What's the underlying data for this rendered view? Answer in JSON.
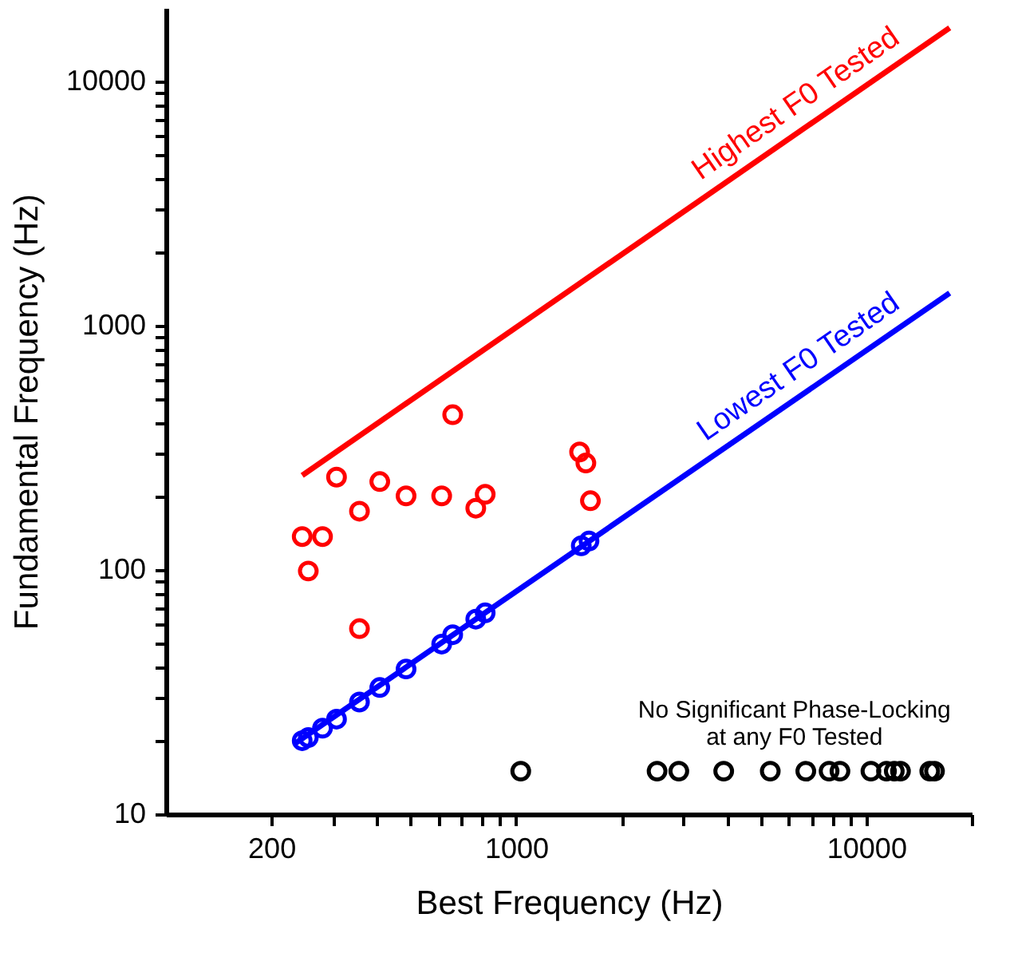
{
  "chart_data": {
    "type": "scatter",
    "xlabel": "Best Frequency (Hz)",
    "ylabel": "Fundamental Frequency (Hz)",
    "log": "xy",
    "grid": false,
    "marker": "circle",
    "xlim": [
      100,
      20000
    ],
    "ylim": [
      10,
      20000
    ],
    "xticks": [
      200,
      {
        "value": 300,
        "label": null
      },
      {
        "value": 400,
        "label": null
      },
      {
        "value": 500,
        "label": null
      },
      {
        "value": 600,
        "label": null
      },
      {
        "value": 700,
        "label": null
      },
      {
        "value": 800,
        "label": null
      },
      {
        "value": 900,
        "label": null
      },
      1000,
      {
        "value": 2000,
        "label": null
      },
      {
        "value": 3000,
        "label": null
      },
      {
        "value": 4000,
        "label": null
      },
      {
        "value": 5000,
        "label": null
      },
      {
        "value": 6000,
        "label": null
      },
      {
        "value": 7000,
        "label": null
      },
      {
        "value": 8000,
        "label": null
      },
      {
        "value": 9000,
        "label": null
      },
      10000,
      {
        "value": 20000,
        "label": null
      }
    ],
    "yticks": [
      10,
      {
        "value": 20,
        "label": null
      },
      {
        "value": 30,
        "label": null
      },
      {
        "value": 40,
        "label": null
      },
      {
        "value": 50,
        "label": null
      },
      {
        "value": 60,
        "label": null
      },
      {
        "value": 70,
        "label": null
      },
      {
        "value": 80,
        "label": null
      },
      {
        "value": 90,
        "label": null
      },
      100,
      {
        "value": 200,
        "label": null
      },
      {
        "value": 300,
        "label": null
      },
      {
        "value": 400,
        "label": null
      },
      {
        "value": 500,
        "label": null
      },
      {
        "value": 600,
        "label": null
      },
      {
        "value": 700,
        "label": null
      },
      {
        "value": 800,
        "label": null
      },
      {
        "value": 900,
        "label": null
      },
      1000,
      {
        "value": 2000,
        "label": null
      },
      {
        "value": 3000,
        "label": null
      },
      {
        "value": 4000,
        "label": null
      },
      {
        "value": 5000,
        "label": null
      },
      {
        "value": 6000,
        "label": null
      },
      {
        "value": 7000,
        "label": null
      },
      {
        "value": 8000,
        "label": null
      },
      {
        "value": 9000,
        "label": null
      },
      10000
    ],
    "series": [
      {
        "name": "Highest F0 Tested",
        "type": "line",
        "marker": "none",
        "color": "#ff0000",
        "x": [
          245,
          17300
        ],
        "values": [
          244,
          16600
        ]
      },
      {
        "name": "Lowest F0 Tested",
        "type": "line",
        "marker": "none",
        "color": "#0000ff",
        "x": [
          233,
          17300
        ],
        "values": [
          19.4,
          1360
        ]
      },
      {
        "color": "#ff0000",
        "x": [
          245,
          280,
          255,
          307,
          357,
          408,
          485,
          613,
          767,
          816,
          659,
          357,
          1518,
          1582,
          1630
        ],
        "values": [
          137,
          137,
          99,
          240,
          174,
          230,
          201,
          201,
          179,
          204,
          432,
          57.5,
          304,
          274,
          192
        ]
      },
      {
        "color": "#0000ff",
        "x": [
          245,
          255,
          280,
          307,
          357,
          408,
          485,
          613,
          659,
          767,
          816,
          1535,
          1615
        ],
        "values": [
          20.0,
          20.6,
          22.5,
          24.5,
          28.8,
          33.0,
          39.3,
          49.7,
          54.3,
          62.9,
          66.7,
          125.6,
          131.3
        ]
      },
      {
        "color": "#000000",
        "x": [
          1031,
          2527,
          2915,
          3916,
          5318,
          6719,
          7830,
          8410,
          10310,
          11420,
          12020,
          12520,
          15180,
          15660
        ],
        "values": [
          15,
          15,
          15,
          15,
          15,
          15,
          15,
          15,
          15,
          15,
          15,
          15,
          15,
          15
        ]
      }
    ],
    "annotations": [
      "No Significant Phase-Locking\nat any F0 Tested"
    ]
  }
}
